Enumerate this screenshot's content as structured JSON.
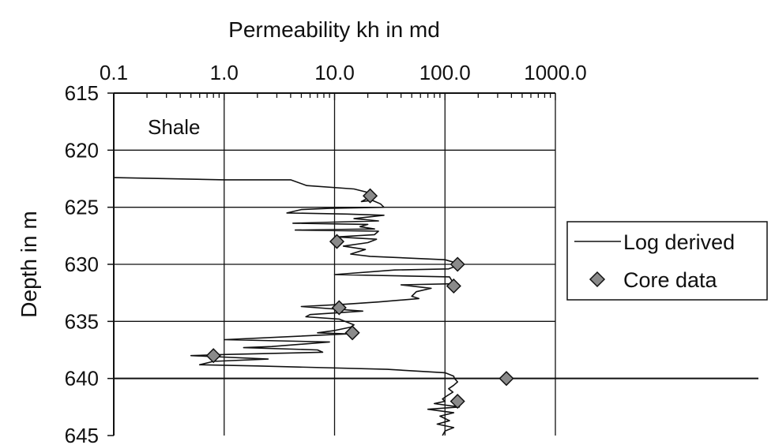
{
  "chart_data": {
    "type": "line",
    "title": "Permeability kh in md",
    "xlabel": "Permeability kh in md",
    "ylabel": "Depth in m",
    "x_scale": "log",
    "xlim": [
      0.1,
      1000.0
    ],
    "ylim": [
      615,
      645
    ],
    "y_inverted": true,
    "x_ticks": [
      "0.1",
      "1.0",
      "10.0",
      "100.0",
      "1000.0"
    ],
    "y_ticks": [
      "615",
      "620",
      "625",
      "630",
      "635",
      "640",
      "645"
    ],
    "grid": true,
    "annotation": "Shale",
    "legend_position": "right",
    "series": [
      {
        "name": "Log derived",
        "style": "line",
        "color": "#111111",
        "points": [
          [
            0.1,
            622.4
          ],
          [
            1.0,
            622.6
          ],
          [
            4.0,
            622.6
          ],
          [
            5.6,
            623.1
          ],
          [
            15.0,
            623.4
          ],
          [
            20.0,
            623.7
          ],
          [
            20.0,
            624.2
          ],
          [
            17.5,
            624.5
          ],
          [
            22.0,
            624.4
          ],
          [
            26.0,
            624.7
          ],
          [
            28.0,
            625.0
          ],
          [
            9.0,
            625.1
          ],
          [
            5.0,
            625.2
          ],
          [
            3.7,
            625.5
          ],
          [
            13.0,
            625.6
          ],
          [
            28.0,
            625.7
          ],
          [
            15.0,
            626.0
          ],
          [
            25.0,
            626.2
          ],
          [
            4.2,
            626.4
          ],
          [
            20.0,
            626.5
          ],
          [
            17.0,
            626.7
          ],
          [
            23.0,
            626.9
          ],
          [
            4.4,
            627.0
          ],
          [
            25.0,
            627.1
          ],
          [
            23.0,
            627.4
          ],
          [
            10.5,
            627.6
          ],
          [
            24.0,
            627.8
          ],
          [
            20.0,
            628.1
          ],
          [
            12.0,
            628.4
          ],
          [
            19.0,
            628.7
          ],
          [
            14.0,
            629.1
          ],
          [
            21.0,
            629.3
          ],
          [
            100.0,
            629.6
          ],
          [
            140.0,
            630.0
          ],
          [
            108.0,
            630.4
          ],
          [
            35.0,
            630.5
          ],
          [
            10.0,
            630.9
          ],
          [
            110.0,
            631.1
          ],
          [
            115.0,
            631.4
          ],
          [
            125.0,
            631.7
          ],
          [
            40.0,
            631.8
          ],
          [
            75.0,
            632.1
          ],
          [
            55.0,
            632.4
          ],
          [
            50.0,
            632.8
          ],
          [
            58.0,
            633.0
          ],
          [
            25.0,
            633.3
          ],
          [
            12.5,
            633.5
          ],
          [
            5.0,
            633.7
          ],
          [
            18.0,
            634.1
          ],
          [
            6.0,
            634.4
          ],
          [
            5.5,
            634.6
          ],
          [
            11.0,
            634.8
          ],
          [
            15.0,
            635.3
          ],
          [
            14.0,
            635.5
          ],
          [
            10.0,
            635.8
          ],
          [
            7.0,
            636.0
          ],
          [
            13.0,
            636.1
          ],
          [
            1.0,
            636.6
          ],
          [
            9.0,
            636.8
          ],
          [
            2.7,
            637.2
          ],
          [
            1.5,
            637.3
          ],
          [
            7.0,
            637.5
          ],
          [
            7.8,
            637.7
          ],
          [
            1.0,
            637.9
          ],
          [
            0.5,
            638.0
          ],
          [
            2.5,
            638.3
          ],
          [
            0.8,
            638.5
          ],
          [
            0.6,
            638.8
          ],
          [
            2.0,
            638.9
          ],
          [
            30.0,
            639.2
          ],
          [
            100.0,
            639.5
          ],
          [
            120.0,
            639.8
          ],
          [
            122.0,
            640.0
          ],
          [
            130.0,
            640.3
          ],
          [
            120.0,
            640.6
          ],
          [
            108.0,
            640.9
          ],
          [
            118.0,
            641.2
          ],
          [
            105.0,
            641.5
          ],
          [
            95.0,
            641.8
          ],
          [
            100.0,
            642.0
          ],
          [
            80.0,
            642.2
          ],
          [
            135.0,
            642.5
          ],
          [
            70.0,
            642.7
          ],
          [
            120.0,
            643.0
          ],
          [
            90.0,
            643.3
          ],
          [
            110.0,
            643.7
          ],
          [
            85.0,
            644.0
          ],
          [
            120.0,
            644.3
          ],
          [
            100.0,
            644.6
          ],
          [
            95.0,
            645.0
          ]
        ]
      },
      {
        "name": "Core data",
        "style": "marker",
        "marker": "diamond",
        "color": "#8a8a8a",
        "points": [
          [
            21.0,
            624.0
          ],
          [
            10.5,
            628.0
          ],
          [
            130.0,
            630.0
          ],
          [
            120.0,
            631.9
          ],
          [
            11.0,
            633.8
          ],
          [
            14.5,
            636.0
          ],
          [
            0.8,
            638.0
          ],
          [
            360.0,
            640.0
          ],
          [
            130.0,
            642.0
          ]
        ]
      }
    ]
  }
}
